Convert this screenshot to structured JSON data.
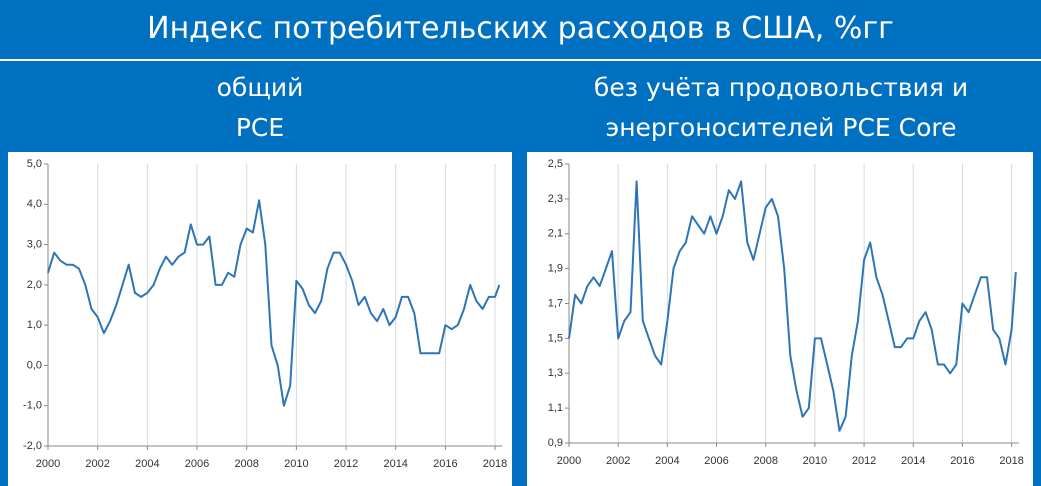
{
  "header": {
    "title": "Индекс потребительских расходов в США, %гг"
  },
  "chart_data": [
    {
      "type": "line",
      "subtitle": [
        "общий",
        "PCE"
      ],
      "color": "#2e75b6",
      "grid": true,
      "x": [
        2000,
        2000.25,
        2000.5,
        2000.75,
        2001,
        2001.25,
        2001.5,
        2001.75,
        2002,
        2002.25,
        2002.5,
        2002.75,
        2003,
        2003.25,
        2003.5,
        2003.75,
        2004,
        2004.25,
        2004.5,
        2004.75,
        2005,
        2005.25,
        2005.5,
        2005.75,
        2006,
        2006.25,
        2006.5,
        2006.75,
        2007,
        2007.25,
        2007.5,
        2007.75,
        2008,
        2008.25,
        2008.5,
        2008.75,
        2009,
        2009.25,
        2009.5,
        2009.75,
        2010,
        2010.25,
        2010.5,
        2010.75,
        2011,
        2011.25,
        2011.5,
        2011.75,
        2012,
        2012.25,
        2012.5,
        2012.75,
        2013,
        2013.25,
        2013.5,
        2013.75,
        2014,
        2014.25,
        2014.5,
        2014.75,
        2015,
        2015.25,
        2015.5,
        2015.75,
        2016,
        2016.25,
        2016.5,
        2016.75,
        2017,
        2017.25,
        2017.5,
        2017.75,
        2018,
        2018.17
      ],
      "values": [
        2.3,
        2.8,
        2.6,
        2.5,
        2.5,
        2.4,
        2.0,
        1.4,
        1.2,
        0.8,
        1.1,
        1.5,
        2.0,
        2.5,
        1.8,
        1.7,
        1.8,
        2.0,
        2.4,
        2.7,
        2.5,
        2.7,
        2.8,
        3.5,
        3.0,
        3.0,
        3.2,
        2.0,
        2.0,
        2.3,
        2.2,
        3.0,
        3.4,
        3.3,
        4.1,
        3.0,
        0.5,
        0.0,
        -1.0,
        -0.5,
        2.1,
        1.9,
        1.5,
        1.3,
        1.6,
        2.4,
        2.8,
        2.8,
        2.5,
        2.1,
        1.5,
        1.7,
        1.3,
        1.1,
        1.4,
        1.0,
        1.2,
        1.7,
        1.7,
        1.3,
        0.3,
        0.3,
        0.3,
        0.3,
        1.0,
        0.9,
        1.0,
        1.4,
        2.0,
        1.6,
        1.4,
        1.7,
        1.7,
        2.0
      ],
      "xlim": [
        2000,
        2018.3
      ],
      "xticks": [
        2000,
        2002,
        2004,
        2006,
        2008,
        2010,
        2012,
        2014,
        2016,
        2018
      ],
      "ylim": [
        -2,
        5
      ],
      "yticks": [
        {
          "value": -2,
          "label": "-2,0"
        },
        {
          "value": -1,
          "label": "-1,0"
        },
        {
          "value": 0,
          "label": "0,0"
        },
        {
          "value": 1,
          "label": "1,0"
        },
        {
          "value": 2,
          "label": "2,0"
        },
        {
          "value": 3,
          "label": "3,0"
        },
        {
          "value": 4,
          "label": "4,0"
        },
        {
          "value": 5,
          "label": "5,0"
        }
      ]
    },
    {
      "type": "line",
      "subtitle": [
        "без учёта продовольствия и",
        "энергоносителей PCE Core"
      ],
      "color": "#2e75b6",
      "grid": true,
      "x": [
        2000,
        2000.25,
        2000.5,
        2000.75,
        2001,
        2001.25,
        2001.5,
        2001.75,
        2002,
        2002.25,
        2002.5,
        2002.75,
        2003,
        2003.25,
        2003.5,
        2003.75,
        2004,
        2004.25,
        2004.5,
        2004.75,
        2005,
        2005.25,
        2005.5,
        2005.75,
        2006,
        2006.25,
        2006.5,
        2006.75,
        2007,
        2007.25,
        2007.5,
        2007.75,
        2008,
        2008.25,
        2008.5,
        2008.75,
        2009,
        2009.25,
        2009.5,
        2009.75,
        2010,
        2010.25,
        2010.5,
        2010.75,
        2011,
        2011.25,
        2011.5,
        2011.75,
        2012,
        2012.25,
        2012.5,
        2012.75,
        2013,
        2013.25,
        2013.5,
        2013.75,
        2014,
        2014.25,
        2014.5,
        2014.75,
        2015,
        2015.25,
        2015.5,
        2015.75,
        2016,
        2016.25,
        2016.5,
        2016.75,
        2017,
        2017.25,
        2017.5,
        2017.75,
        2018,
        2018.17
      ],
      "values": [
        1.5,
        1.75,
        1.7,
        1.8,
        1.85,
        1.8,
        1.9,
        2.0,
        1.5,
        1.6,
        1.65,
        2.4,
        1.6,
        1.5,
        1.4,
        1.35,
        1.6,
        1.9,
        2.0,
        2.05,
        2.2,
        2.15,
        2.1,
        2.2,
        2.1,
        2.2,
        2.35,
        2.3,
        2.4,
        2.05,
        1.95,
        2.1,
        2.25,
        2.3,
        2.2,
        1.9,
        1.4,
        1.2,
        1.05,
        1.1,
        1.5,
        1.5,
        1.35,
        1.2,
        0.97,
        1.05,
        1.4,
        1.6,
        1.95,
        2.05,
        1.85,
        1.75,
        1.6,
        1.45,
        1.45,
        1.5,
        1.5,
        1.6,
        1.65,
        1.55,
        1.35,
        1.35,
        1.3,
        1.35,
        1.7,
        1.65,
        1.75,
        1.85,
        1.85,
        1.55,
        1.5,
        1.35,
        1.55,
        1.88
      ],
      "xlim": [
        2000,
        2018.3
      ],
      "xticks": [
        2000,
        2002,
        2004,
        2006,
        2008,
        2010,
        2012,
        2014,
        2016,
        2018
      ],
      "ylim": [
        0.9,
        2.5
      ],
      "yticks": [
        {
          "value": 0.9,
          "label": "0,9"
        },
        {
          "value": 1.1,
          "label": "1,1"
        },
        {
          "value": 1.3,
          "label": "1,3"
        },
        {
          "value": 1.5,
          "label": "1,5"
        },
        {
          "value": 1.7,
          "label": "1,7"
        },
        {
          "value": 1.9,
          "label": "1,9"
        },
        {
          "value": 2.1,
          "label": "2,1"
        },
        {
          "value": 2.3,
          "label": "2,3"
        },
        {
          "value": 2.5,
          "label": "2,5"
        }
      ]
    }
  ]
}
